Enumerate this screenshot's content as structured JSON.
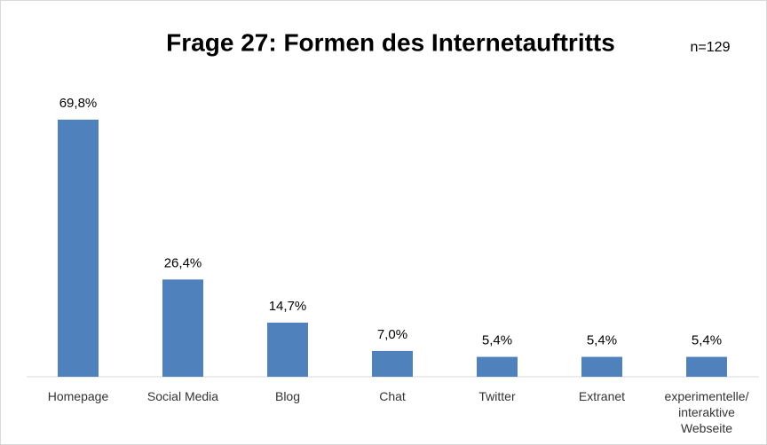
{
  "chart_data": {
    "type": "bar",
    "title": "Frage 27: Formen des Internetauftritts",
    "annotation": "n=129",
    "categories": [
      "Homepage",
      "Social Media",
      "Blog",
      "Chat",
      "Twitter",
      "Extranet",
      "experimentelle/ interaktive Webseite"
    ],
    "values": [
      69.8,
      26.4,
      14.7,
      7.0,
      5.4,
      5.4,
      5.4
    ],
    "value_labels": [
      "69,8%",
      "26,4%",
      "14,7%",
      "7,0%",
      "5,4%",
      "5,4%",
      "5,4%"
    ],
    "color": "#4f81bd"
  }
}
